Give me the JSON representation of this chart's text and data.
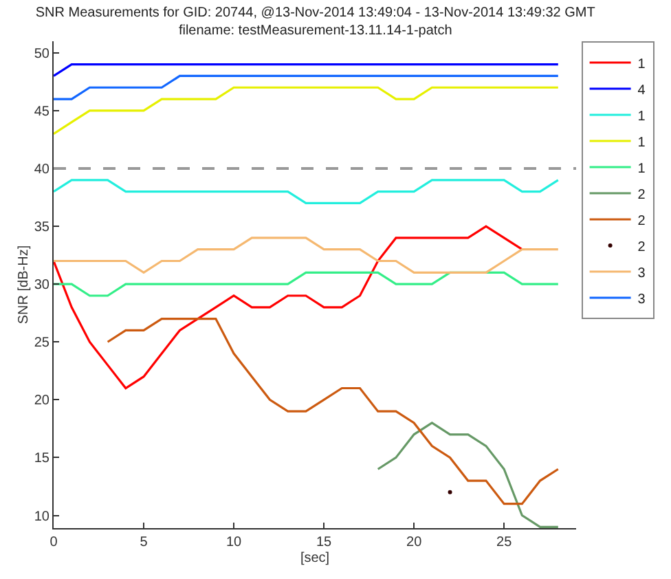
{
  "chart_data": {
    "type": "line",
    "title": "SNR Measurements for GID: 20744, @13-Nov-2014 13:49:04 - 13-Nov-2014 13:49:32 GMT",
    "subtitle": "filename: testMeasurement-13.11.14-1-patch",
    "xlabel": "[sec]",
    "ylabel": "SNR [dB-Hz]",
    "x": [
      0,
      1,
      2,
      3,
      4,
      5,
      6,
      7,
      8,
      9,
      10,
      11,
      12,
      13,
      14,
      15,
      16,
      17,
      18,
      19,
      20,
      21,
      22,
      23,
      24,
      25,
      26,
      27,
      28
    ],
    "xlim": [
      0,
      29
    ],
    "xticks": [
      0,
      5,
      10,
      15,
      20,
      25
    ],
    "ylim": [
      8.9,
      51
    ],
    "yticks": [
      10,
      15,
      20,
      25,
      30,
      35,
      40,
      45,
      50
    ],
    "legend": "right",
    "series": [
      {
        "name": "1",
        "color": "#ff0000",
        "values": [
          32,
          28,
          25,
          23,
          21,
          22,
          24,
          26,
          27,
          28,
          29,
          28,
          28,
          29,
          29,
          28,
          28,
          29,
          32,
          34,
          34,
          34,
          34,
          34,
          35,
          34,
          33,
          null,
          null
        ]
      },
      {
        "name": "4",
        "color": "#0000ff",
        "values": [
          48,
          49,
          49,
          49,
          49,
          49,
          49,
          49,
          49,
          49,
          49,
          49,
          49,
          49,
          49,
          49,
          49,
          49,
          49,
          49,
          49,
          49,
          49,
          49,
          49,
          49,
          49,
          49,
          49
        ]
      },
      {
        "name": "1",
        "color": "#22eedd",
        "values": [
          38,
          39,
          39,
          39,
          38,
          38,
          38,
          38,
          38,
          38,
          38,
          38,
          38,
          38,
          37,
          37,
          37,
          37,
          38,
          38,
          38,
          39,
          39,
          39,
          39,
          39,
          38,
          38,
          39
        ]
      },
      {
        "name": "1",
        "color": "#e6f000",
        "values": [
          43,
          44,
          45,
          45,
          45,
          45,
          46,
          46,
          46,
          46,
          47,
          47,
          47,
          47,
          47,
          47,
          47,
          47,
          47,
          46,
          46,
          47,
          47,
          47,
          47,
          47,
          47,
          47,
          47
        ]
      },
      {
        "name": "1",
        "color": "#33ee88",
        "values": [
          30,
          30,
          29,
          29,
          30,
          30,
          30,
          30,
          30,
          30,
          30,
          30,
          30,
          30,
          31,
          31,
          31,
          31,
          31,
          30,
          30,
          30,
          31,
          31,
          31,
          31,
          30,
          30,
          30
        ]
      },
      {
        "name": "2",
        "color": "#669966",
        "values": [
          null,
          null,
          null,
          null,
          null,
          null,
          null,
          null,
          null,
          null,
          null,
          null,
          null,
          null,
          null,
          null,
          null,
          null,
          14,
          15,
          17,
          18,
          17,
          17,
          16,
          14,
          10,
          9,
          9
        ]
      },
      {
        "name": "2",
        "color": "#cc5a10",
        "values": [
          null,
          null,
          null,
          25,
          26,
          26,
          27,
          27,
          27,
          27,
          24,
          22,
          20,
          19,
          19,
          20,
          21,
          21,
          19,
          19,
          18,
          16,
          15,
          13,
          13,
          11,
          11,
          13,
          14
        ]
      },
      {
        "name": "2",
        "color": "#330000",
        "type": "scatter",
        "values": [
          null,
          null,
          null,
          null,
          null,
          null,
          null,
          null,
          null,
          null,
          null,
          null,
          null,
          null,
          null,
          null,
          null,
          null,
          null,
          null,
          null,
          null,
          12,
          null,
          null,
          null,
          null,
          null,
          null
        ]
      },
      {
        "name": "3",
        "color": "#f5b870",
        "values": [
          32,
          32,
          32,
          32,
          32,
          31,
          32,
          32,
          33,
          33,
          33,
          34,
          34,
          34,
          34,
          33,
          33,
          33,
          32,
          32,
          31,
          31,
          31,
          31,
          31,
          32,
          33,
          33,
          33
        ]
      },
      {
        "name": "3",
        "color": "#1166ff",
        "values": [
          46,
          46,
          47,
          47,
          47,
          47,
          47,
          48,
          48,
          48,
          48,
          48,
          48,
          48,
          48,
          48,
          48,
          48,
          48,
          48,
          48,
          48,
          48,
          48,
          48,
          48,
          48,
          48,
          48
        ]
      }
    ],
    "ref_lines": [
      {
        "axis": "y",
        "value": 40,
        "color": "#999999",
        "line_style": "dashed"
      }
    ]
  }
}
